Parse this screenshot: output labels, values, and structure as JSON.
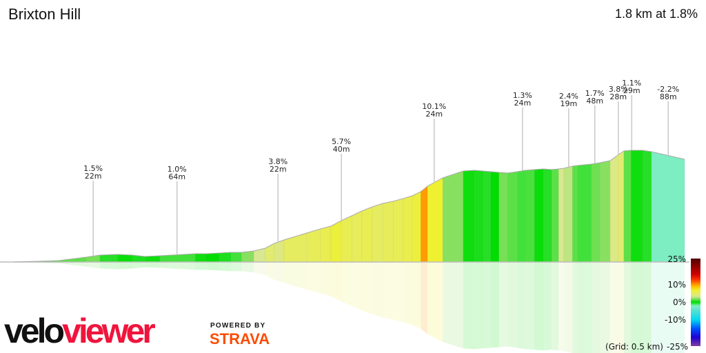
{
  "header": {
    "title": "Brixton Hill",
    "summary": "1.8 km at 1.8%"
  },
  "chart_data": {
    "type": "area",
    "title": "Brixton Hill",
    "xlim": [
      0,
      1.8
    ],
    "x_unit": "km",
    "y_unit": "m",
    "profile": [
      [
        0,
        0
      ],
      [
        0.065,
        0.2
      ],
      [
        0.12,
        0.4
      ],
      [
        0.194,
        1.4
      ],
      [
        0.231,
        2.0
      ],
      [
        0.278,
        2.2
      ],
      [
        0.318,
        2.0
      ],
      [
        0.352,
        1.6
      ],
      [
        0.392,
        1.8
      ],
      [
        0.487,
        2.4
      ],
      [
        0.518,
        2.4
      ],
      [
        0.551,
        2.6
      ],
      [
        0.583,
        2.8
      ],
      [
        0.611,
        2.8
      ],
      [
        0.644,
        3.2
      ],
      [
        0.675,
        4.0
      ],
      [
        0.699,
        5.4
      ],
      [
        0.725,
        6.4
      ],
      [
        0.786,
        8.4
      ],
      [
        0.823,
        9.6
      ],
      [
        0.851,
        10.4
      ],
      [
        0.879,
        12.0
      ],
      [
        0.907,
        13.4
      ],
      [
        0.934,
        14.8
      ],
      [
        0.962,
        16.0
      ],
      [
        0.99,
        17.0
      ],
      [
        1.018,
        17.6
      ],
      [
        1.045,
        18.4
      ],
      [
        1.069,
        19.2
      ],
      [
        1.092,
        20.4
      ],
      [
        1.11,
        22.0
      ],
      [
        1.151,
        24.4
      ],
      [
        1.206,
        26.4
      ],
      [
        1.236,
        26.6
      ],
      [
        1.258,
        26.4
      ],
      [
        1.28,
        26.2
      ],
      [
        1.302,
        26.0
      ],
      [
        1.325,
        25.8
      ],
      [
        1.351,
        26.2
      ],
      [
        1.373,
        26.6
      ],
      [
        1.397,
        26.8
      ],
      [
        1.421,
        27.0
      ],
      [
        1.443,
        26.8
      ],
      [
        1.462,
        27.0
      ],
      [
        1.476,
        27.2
      ],
      [
        1.499,
        27.8
      ],
      [
        1.513,
        28.0
      ],
      [
        1.55,
        28.4
      ],
      [
        1.573,
        28.8
      ],
      [
        1.6,
        29.4
      ],
      [
        1.621,
        31.0
      ],
      [
        1.637,
        32.2
      ],
      [
        1.656,
        32.4
      ],
      [
        1.687,
        32.4
      ],
      [
        1.711,
        32.0
      ],
      [
        1.8,
        29.8
      ]
    ],
    "segment_gradients_pct": [
      1.0,
      1.5,
      1.5,
      1.8,
      0.8,
      0.2,
      0.6,
      0.3,
      1.2,
      0.3,
      0.0,
      0.6,
      1.2,
      2.0,
      3.5,
      4.5,
      4.0,
      5.0,
      5.3,
      5.7,
      6.5,
      5.5,
      5.2,
      5.5,
      5.0,
      5.2,
      5.4,
      5.8,
      6.5,
      10.1,
      7.0,
      2.0,
      0.3,
      0.5,
      0.8,
      0.0,
      1.8,
      1.5,
      1.2,
      1.3,
      0.2,
      0.8,
      1.5,
      3.5,
      3.0,
      1.5,
      1.2,
      1.7,
      2.0,
      3.8,
      4.5,
      1.5,
      0.3,
      0.8,
      -2.2
    ],
    "annotations": [
      {
        "km": 0.213,
        "gradient": "1.5%",
        "length": "22m"
      },
      {
        "km": 0.438,
        "gradient": "1.0%",
        "length": "64m"
      },
      {
        "km": 0.709,
        "gradient": "3.8%",
        "length": "22m"
      },
      {
        "km": 0.879,
        "gradient": "5.7%",
        "length": "40m"
      },
      {
        "km": 1.128,
        "gradient": "10.1%",
        "length": "24m"
      },
      {
        "km": 1.365,
        "gradient": "1.3%",
        "length": "24m"
      },
      {
        "km": 1.489,
        "gradient": "2.4%",
        "length": "19m"
      },
      {
        "km": 1.559,
        "gradient": "1.7%",
        "length": "48m"
      },
      {
        "km": 1.622,
        "gradient": "3.8%",
        "length": "28m"
      },
      {
        "km": 1.658,
        "gradient": "1.1%",
        "length": "29m"
      },
      {
        "km": 1.756,
        "gradient": "-2.2%",
        "length": "88m"
      }
    ],
    "grid_note": "(Grid: 0.5 km)",
    "legend": {
      "placement": "bottom-right",
      "ticks": [
        {
          "value": 25,
          "label": "25%"
        },
        {
          "value": 10,
          "label": "10%"
        },
        {
          "value": 0,
          "label": "0%"
        },
        {
          "value": -10,
          "label": "-10%"
        },
        {
          "value": -25,
          "label": "-25%"
        }
      ],
      "color_stops": [
        [
          -25,
          "#8040a0"
        ],
        [
          -20,
          "#2000d0"
        ],
        [
          -15,
          "#0050ff"
        ],
        [
          -10,
          "#00d8f0"
        ],
        [
          -5,
          "#50e0d8"
        ],
        [
          -2,
          "#80eec0"
        ],
        [
          0,
          "#00dd00"
        ],
        [
          1,
          "#30e030"
        ],
        [
          2,
          "#88e060"
        ],
        [
          3.5,
          "#d8e890"
        ],
        [
          5,
          "#e6ec60"
        ],
        [
          7,
          "#eef030"
        ],
        [
          9,
          "#ffc000"
        ],
        [
          10,
          "#ffa000"
        ],
        [
          13,
          "#ff3000"
        ],
        [
          16,
          "#d00000"
        ],
        [
          25,
          "#500000"
        ]
      ]
    }
  },
  "branding": {
    "logo_part1": "velo",
    "logo_part2": "viewer",
    "powered_by": "POWERED BY",
    "strava": "STRAVA"
  }
}
